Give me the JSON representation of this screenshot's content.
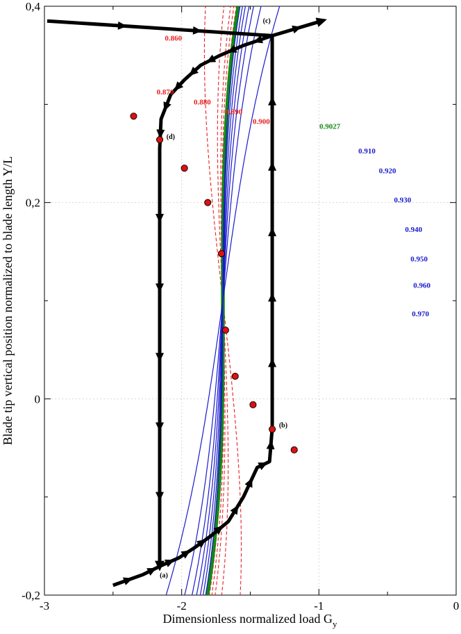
{
  "chart_data": {
    "type": "line",
    "xlabel": "Dimensionless normalized load G",
    "xlabel_sub": "y",
    "ylabel": "Blade tip vertical position normalized to blade length Y/L",
    "xlim": [
      -3,
      0
    ],
    "ylim": [
      -0.2,
      0.4
    ],
    "x_ticks": [
      -3,
      -2,
      -1,
      0
    ],
    "x_tick_labels": [
      "-3",
      "-2",
      "-1",
      "0"
    ],
    "y_ticks": [
      -0.2,
      0,
      0.2,
      0.4
    ],
    "y_tick_labels": [
      "-0,2",
      "0",
      "0,2",
      "0,4"
    ],
    "inflection": {
      "x": -1.7,
      "y": 0.1
    },
    "colors": {
      "unstable": "#e82020",
      "stable": "#1a1acc",
      "critical": "#138a13",
      "path": "#000000",
      "marker": "#dd1111"
    },
    "series": [
      {
        "name": "0.860",
        "label": "0.860",
        "kind": "unstable",
        "k": -0.8,
        "label_at": [
          -2.06,
          0.365
        ]
      },
      {
        "name": "0.870",
        "label": "0.870",
        "kind": "unstable",
        "k": -0.35,
        "label_at": [
          -2.12,
          0.31
        ]
      },
      {
        "name": "0.880",
        "label": "0.880",
        "kind": "unstable",
        "k": -0.19,
        "label_at": [
          -1.85,
          0.3
        ]
      },
      {
        "name": "0.890",
        "label": "0.890",
        "kind": "unstable",
        "k": -0.11,
        "label_at": [
          -1.62,
          0.29
        ]
      },
      {
        "name": "0.900",
        "label": "0.900",
        "kind": "unstable",
        "k": -0.05,
        "label_at": [
          -1.42,
          0.28
        ]
      },
      {
        "name": "0.9027",
        "label": "0.9027",
        "kind": "critical",
        "k": 0.0,
        "label_at": [
          -0.92,
          0.275
        ]
      },
      {
        "name": "0.910",
        "label": "0.910",
        "kind": "stable",
        "k": 0.04,
        "label_at": [
          -0.65,
          0.25
        ]
      },
      {
        "name": "0.920",
        "label": "0.920",
        "kind": "stable",
        "k": 0.1,
        "label_at": [
          -0.5,
          0.23
        ]
      },
      {
        "name": "0.930",
        "label": "0.930",
        "kind": "stable",
        "k": 0.17,
        "label_at": [
          -0.39,
          0.2
        ]
      },
      {
        "name": "0.940",
        "label": "0.940",
        "kind": "stable",
        "k": 0.26,
        "label_at": [
          -0.31,
          0.17
        ]
      },
      {
        "name": "0.950",
        "label": "0.950",
        "kind": "stable",
        "k": 0.37,
        "label_at": [
          -0.27,
          0.14
        ]
      },
      {
        "name": "0.960",
        "label": "0.960",
        "kind": "stable",
        "k": 0.55,
        "label_at": [
          -0.25,
          0.113
        ]
      },
      {
        "name": "0.970",
        "label": "0.970",
        "kind": "stable",
        "k": 1.0,
        "label_at": [
          -0.26,
          0.084
        ]
      }
    ],
    "turning_points": [
      {
        "x": -2.35,
        "y": 0.288
      },
      {
        "x": -2.16,
        "y": 0.264
      },
      {
        "x": -1.98,
        "y": 0.235
      },
      {
        "x": -1.81,
        "y": 0.2
      },
      {
        "x": -1.71,
        "y": 0.148
      },
      {
        "x": -1.68,
        "y": 0.07
      },
      {
        "x": -1.61,
        "y": 0.023
      },
      {
        "x": -1.48,
        "y": -0.006
      },
      {
        "x": -1.34,
        "y": -0.031
      },
      {
        "x": -1.18,
        "y": -0.052
      }
    ],
    "hysteresis_path": [
      {
        "x": -2.5,
        "y": -0.19
      },
      {
        "x": -2.28,
        "y": -0.179
      },
      {
        "x": -2.15,
        "y": -0.17
      },
      {
        "x": -2.02,
        "y": -0.162
      },
      {
        "x": -1.91,
        "y": -0.152
      },
      {
        "x": -1.79,
        "y": -0.14
      },
      {
        "x": -1.66,
        "y": -0.125
      },
      {
        "x": -1.55,
        "y": -0.1
      },
      {
        "x": -1.45,
        "y": -0.07
      },
      {
        "x": -1.36,
        "y": -0.064
      },
      {
        "x": -1.34,
        "y": -0.03
      },
      {
        "x": -1.34,
        "y": 0.37
      },
      {
        "x": -0.98,
        "y": 0.385
      }
    ],
    "return_path": [
      {
        "x": -2.98,
        "y": 0.385
      },
      {
        "x": -1.34,
        "y": 0.37
      },
      {
        "x": -1.55,
        "y": 0.36
      },
      {
        "x": -1.72,
        "y": 0.35
      },
      {
        "x": -1.86,
        "y": 0.34
      },
      {
        "x": -1.98,
        "y": 0.325
      },
      {
        "x": -2.08,
        "y": 0.31
      },
      {
        "x": -2.15,
        "y": 0.285
      },
      {
        "x": -2.16,
        "y": 0.255
      },
      {
        "x": -2.16,
        "y": -0.17
      }
    ],
    "path_points": [
      {
        "label": "(a)",
        "x": -2.13,
        "y": -0.182
      },
      {
        "label": "(b)",
        "x": -1.26,
        "y": -0.029
      },
      {
        "label": "(c)",
        "x": -1.38,
        "y": 0.383
      },
      {
        "label": "(d)",
        "x": -2.08,
        "y": 0.265
      }
    ]
  }
}
